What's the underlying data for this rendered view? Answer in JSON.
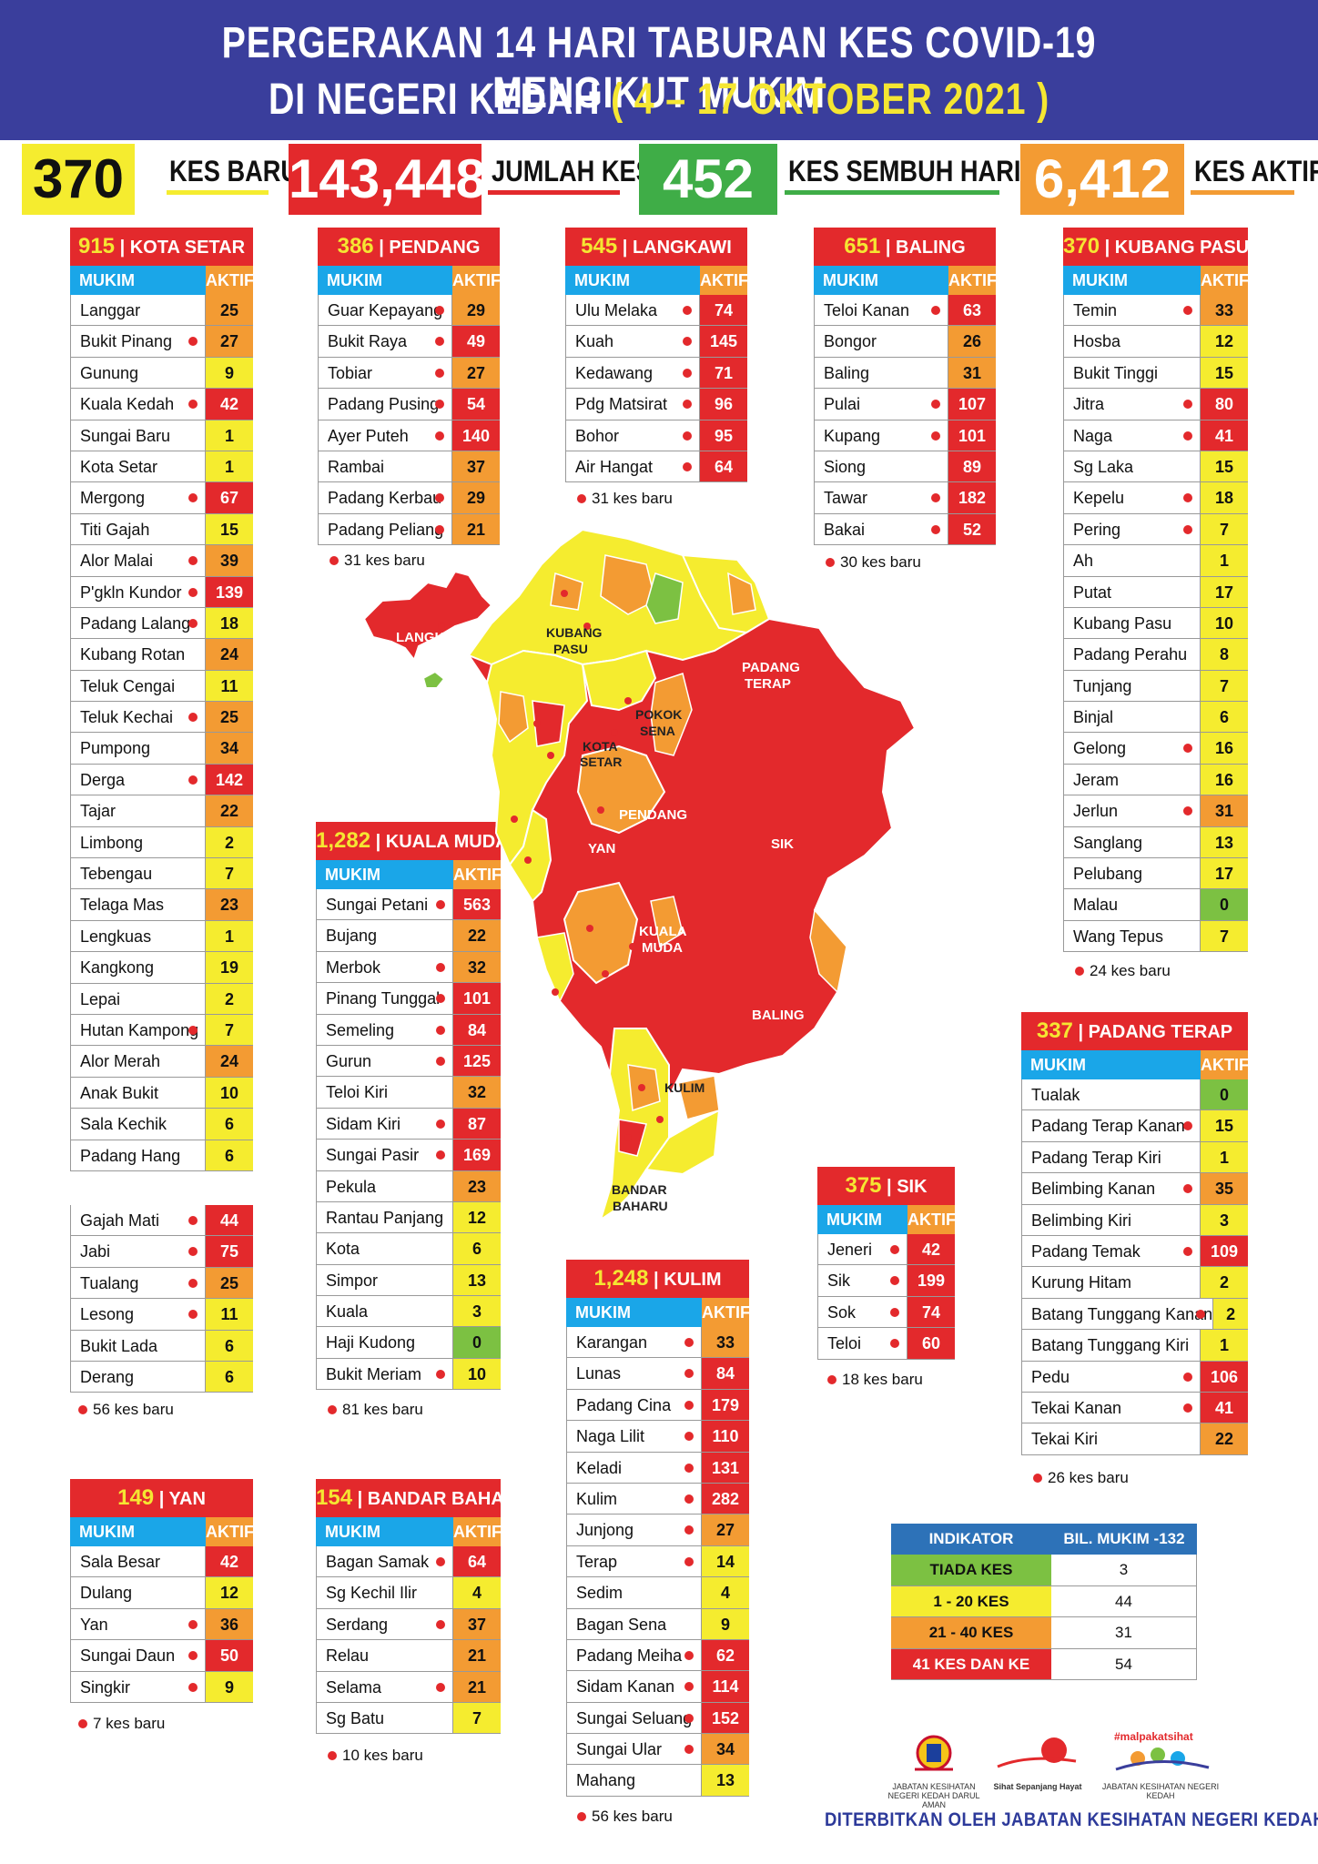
{
  "header": {
    "line1": "PERGERAKAN 14 HARI TABURAN KES COVID-19 MENGIKUT MUKIM",
    "line2_prefix": "DI NEGERI KEDAH",
    "line2_dates": "( 4 – 17 OKTOBER 2021 )"
  },
  "stats": {
    "new_cases": {
      "value": "370",
      "label": "KES BARU",
      "color": "#f5ec2f"
    },
    "total_cases": {
      "value": "143,448",
      "label": "JUMLAH KES",
      "color": "#e3292c"
    },
    "recovered": {
      "value": "452",
      "label": "KES SEMBUH HARIAN",
      "color": "#3fad47"
    },
    "active": {
      "value": "6,412",
      "label": "KES AKTIF",
      "color": "#f39b33"
    }
  },
  "colors": {
    "red": "#e3292c",
    "orange": "#f39b33",
    "yellow": "#f5ec2f",
    "green": "#7cc142",
    "blue": "#1aa6e8",
    "navy": "#3a3e9c"
  },
  "column_labels": {
    "mukim": "MUKIM",
    "aktif": "AKTIF"
  },
  "districts": {
    "kota_setar": {
      "total": "915",
      "name": "KOTA SETAR",
      "note": "56 kes baru",
      "rows": [
        {
          "name": "Langgar",
          "value": "25",
          "dot": false
        },
        {
          "name": "Bukit Pinang",
          "value": "27",
          "dot": true
        },
        {
          "name": "Gunung",
          "value": "9",
          "dot": false
        },
        {
          "name": "Kuala Kedah",
          "value": "42",
          "dot": true
        },
        {
          "name": "Sungai Baru",
          "value": "1",
          "dot": false
        },
        {
          "name": "Kota Setar",
          "value": "1",
          "dot": false
        },
        {
          "name": "Mergong",
          "value": "67",
          "dot": true
        },
        {
          "name": "Titi Gajah",
          "value": "15",
          "dot": false
        },
        {
          "name": "Alor Malai",
          "value": "39",
          "dot": true
        },
        {
          "name": "P'gkln Kundor",
          "value": "139",
          "dot": true
        },
        {
          "name": "Padang Lalang",
          "value": "18",
          "dot": true
        },
        {
          "name": "Kubang Rotan",
          "value": "24",
          "dot": false
        },
        {
          "name": "Teluk Cengai",
          "value": "11",
          "dot": false
        },
        {
          "name": "Teluk Kechai",
          "value": "25",
          "dot": true
        },
        {
          "name": "Pumpong",
          "value": "34",
          "dot": false
        },
        {
          "name": "Derga",
          "value": "142",
          "dot": true
        },
        {
          "name": "Tajar",
          "value": "22",
          "dot": false
        },
        {
          "name": "Limbong",
          "value": "2",
          "dot": false
        },
        {
          "name": "Tebengau",
          "value": "7",
          "dot": false
        },
        {
          "name": "Telaga Mas",
          "value": "23",
          "dot": false
        },
        {
          "name": "Lengkuas",
          "value": "1",
          "dot": false
        },
        {
          "name": "Kangkong",
          "value": "19",
          "dot": false
        },
        {
          "name": "Lepai",
          "value": "2",
          "dot": false
        },
        {
          "name": "Hutan Kampong",
          "value": "7",
          "dot": true
        },
        {
          "name": "Alor Merah",
          "value": "24",
          "dot": false
        },
        {
          "name": "Anak Bukit",
          "value": "10",
          "dot": false
        },
        {
          "name": "Sala Kechik",
          "value": "6",
          "dot": false
        },
        {
          "name": "Padang Hang",
          "value": "6",
          "dot": false
        }
      ],
      "rows2": [
        {
          "name": "Gajah Mati",
          "value": "44",
          "dot": true
        },
        {
          "name": "Jabi",
          "value": "75",
          "dot": true
        },
        {
          "name": "Tualang",
          "value": "25",
          "dot": true
        },
        {
          "name": "Lesong",
          "value": "11",
          "dot": true
        },
        {
          "name": "Bukit Lada",
          "value": "6",
          "dot": false
        },
        {
          "name": "Derang",
          "value": "6",
          "dot": false
        }
      ]
    },
    "yan": {
      "total": "149",
      "name": "YAN",
      "note": "7 kes baru",
      "rows": [
        {
          "name": "Sala Besar",
          "value": "42",
          "dot": false
        },
        {
          "name": "Dulang",
          "value": "12",
          "dot": false
        },
        {
          "name": "Yan",
          "value": "36",
          "dot": true
        },
        {
          "name": "Sungai Daun",
          "value": "50",
          "dot": true
        },
        {
          "name": "Singkir",
          "value": "9",
          "dot": true
        }
      ]
    },
    "pendang": {
      "total": "386",
      "name": "PENDANG",
      "note": "31 kes baru",
      "rows": [
        {
          "name": "Guar Kepayang",
          "value": "29",
          "dot": true
        },
        {
          "name": "Bukit Raya",
          "value": "49",
          "dot": true
        },
        {
          "name": "Tobiar",
          "value": "27",
          "dot": true
        },
        {
          "name": "Padang Pusing",
          "value": "54",
          "dot": true
        },
        {
          "name": "Ayer Puteh",
          "value": "140",
          "dot": true
        },
        {
          "name": "Rambai",
          "value": "37",
          "dot": false
        },
        {
          "name": "Padang Kerbau",
          "value": "29",
          "dot": true
        },
        {
          "name": "Padang Peliang",
          "value": "21",
          "dot": true
        }
      ]
    },
    "kuala_muda": {
      "total": "1,282",
      "name": "KUALA MUDA",
      "note": "81 kes baru",
      "rows": [
        {
          "name": "Sungai Petani",
          "value": "563",
          "dot": true
        },
        {
          "name": "Bujang",
          "value": "22",
          "dot": false
        },
        {
          "name": "Merbok",
          "value": "32",
          "dot": true
        },
        {
          "name": "Pinang Tunggal",
          "value": "101",
          "dot": true
        },
        {
          "name": "Semeling",
          "value": "84",
          "dot": true
        },
        {
          "name": "Gurun",
          "value": "125",
          "dot": true
        },
        {
          "name": "Teloi Kiri",
          "value": "32",
          "dot": false
        },
        {
          "name": "Sidam Kiri",
          "value": "87",
          "dot": true
        },
        {
          "name": "Sungai Pasir",
          "value": "169",
          "dot": true
        },
        {
          "name": "Pekula",
          "value": "23",
          "dot": false
        },
        {
          "name": "Rantau Panjang",
          "value": "12",
          "dot": false
        },
        {
          "name": "Kota",
          "value": "6",
          "dot": false
        },
        {
          "name": "Simpor",
          "value": "13",
          "dot": false
        },
        {
          "name": "Kuala",
          "value": "3",
          "dot": false
        },
        {
          "name": "Haji Kudong",
          "value": "0",
          "dot": false
        },
        {
          "name": "Bukit Meriam",
          "value": "10",
          "dot": true
        }
      ]
    },
    "bandar_baharu": {
      "total": "154",
      "name": "BANDAR BAHARU",
      "note": "10 kes baru",
      "rows": [
        {
          "name": "Bagan Samak",
          "value": "64",
          "dot": true
        },
        {
          "name": "Sg Kechil Ilir",
          "value": "4",
          "dot": false
        },
        {
          "name": "Serdang",
          "value": "37",
          "dot": true
        },
        {
          "name": "Relau",
          "value": "21",
          "dot": false
        },
        {
          "name": "Selama",
          "value": "21",
          "dot": true
        },
        {
          "name": "Sg Batu",
          "value": "7",
          "dot": false
        }
      ]
    },
    "langkawi": {
      "total": "545",
      "name": "LANGKAWI",
      "note": "31 kes baru",
      "rows": [
        {
          "name": "Ulu Melaka",
          "value": "74",
          "dot": true
        },
        {
          "name": "Kuah",
          "value": "145",
          "dot": true
        },
        {
          "name": "Kedawang",
          "value": "71",
          "dot": true
        },
        {
          "name": "Pdg Matsirat",
          "value": "96",
          "dot": true
        },
        {
          "name": "Bohor",
          "value": "95",
          "dot": true
        },
        {
          "name": "Air Hangat",
          "value": "64",
          "dot": true
        }
      ]
    },
    "kulim": {
      "total": "1,248",
      "name": "KULIM",
      "note": "56 kes baru",
      "rows": [
        {
          "name": "Karangan",
          "value": "33",
          "dot": true
        },
        {
          "name": "Lunas",
          "value": "84",
          "dot": true
        },
        {
          "name": "Padang Cina",
          "value": "179",
          "dot": true
        },
        {
          "name": "Naga Lilit",
          "value": "110",
          "dot": true
        },
        {
          "name": "Keladi",
          "value": "131",
          "dot": true
        },
        {
          "name": "Kulim",
          "value": "282",
          "dot": true
        },
        {
          "name": "Junjong",
          "value": "27",
          "dot": true
        },
        {
          "name": "Terap",
          "value": "14",
          "dot": true
        },
        {
          "name": "Sedim",
          "value": "4",
          "dot": false
        },
        {
          "name": "Bagan Sena",
          "value": "9",
          "dot": false
        },
        {
          "name": "Padang Meiha",
          "value": "62",
          "dot": true
        },
        {
          "name": "Sidam Kanan",
          "value": "114",
          "dot": true
        },
        {
          "name": "Sungai Seluang",
          "value": "152",
          "dot": true
        },
        {
          "name": "Sungai Ular",
          "value": "34",
          "dot": true
        },
        {
          "name": "Mahang",
          "value": "13",
          "dot": false
        }
      ]
    },
    "baling": {
      "total": "651",
      "name": "BALING",
      "note": "30 kes baru",
      "rows": [
        {
          "name": "Teloi Kanan",
          "value": "63",
          "dot": true
        },
        {
          "name": "Bongor",
          "value": "26",
          "dot": false
        },
        {
          "name": "Baling",
          "value": "31",
          "dot": false
        },
        {
          "name": "Pulai",
          "value": "107",
          "dot": true
        },
        {
          "name": "Kupang",
          "value": "101",
          "dot": true
        },
        {
          "name": "Siong",
          "value": "89",
          "dot": false
        },
        {
          "name": "Tawar",
          "value": "182",
          "dot": true
        },
        {
          "name": "Bakai",
          "value": "52",
          "dot": true
        }
      ]
    },
    "sik": {
      "total": "375",
      "name": "SIK",
      "note": "18 kes baru",
      "rows": [
        {
          "name": "Jeneri",
          "value": "42",
          "dot": true
        },
        {
          "name": "Sik",
          "value": "199",
          "dot": true
        },
        {
          "name": "Sok",
          "value": "74",
          "dot": true
        },
        {
          "name": "Teloi",
          "value": "60",
          "dot": true
        }
      ]
    },
    "kubang_pasu": {
      "total": "370",
      "name": "KUBANG PASU",
      "note": "24 kes baru",
      "rows": [
        {
          "name": "Temin",
          "value": "33",
          "dot": true
        },
        {
          "name": "Hosba",
          "value": "12",
          "dot": false
        },
        {
          "name": "Bukit Tinggi",
          "value": "15",
          "dot": false
        },
        {
          "name": "Jitra",
          "value": "80",
          "dot": true
        },
        {
          "name": "Naga",
          "value": "41",
          "dot": true
        },
        {
          "name": "Sg Laka",
          "value": "15",
          "dot": false
        },
        {
          "name": "Kepelu",
          "value": "18",
          "dot": true
        },
        {
          "name": "Pering",
          "value": "7",
          "dot": true
        },
        {
          "name": "Ah",
          "value": "1",
          "dot": false
        },
        {
          "name": "Putat",
          "value": "17",
          "dot": false
        },
        {
          "name": "Kubang Pasu",
          "value": "10",
          "dot": false
        },
        {
          "name": "Padang Perahu",
          "value": "8",
          "dot": false
        },
        {
          "name": "Tunjang",
          "value": "7",
          "dot": false
        },
        {
          "name": "Binjal",
          "value": "6",
          "dot": false
        },
        {
          "name": "Gelong",
          "value": "16",
          "dot": true
        },
        {
          "name": "Jeram",
          "value": "16",
          "dot": false
        },
        {
          "name": "Jerlun",
          "value": "31",
          "dot": true
        },
        {
          "name": "Sanglang",
          "value": "13",
          "dot": false
        },
        {
          "name": "Pelubang",
          "value": "17",
          "dot": false
        },
        {
          "name": "Malau",
          "value": "0",
          "dot": false
        },
        {
          "name": "Wang Tepus",
          "value": "7",
          "dot": false
        }
      ]
    },
    "padang_terap": {
      "total": "337",
      "name": "PADANG TERAP",
      "note": "26 kes baru",
      "rows": [
        {
          "name": "Tualak",
          "value": "0",
          "dot": false
        },
        {
          "name": "Padang Terap Kanan",
          "value": "15",
          "dot": true
        },
        {
          "name": "Padang Terap Kiri",
          "value": "1",
          "dot": false
        },
        {
          "name": "Belimbing Kanan",
          "value": "35",
          "dot": true
        },
        {
          "name": "Belimbing Kiri",
          "value": "3",
          "dot": false
        },
        {
          "name": "Padang Temak",
          "value": "109",
          "dot": true
        },
        {
          "name": "Kurung Hitam",
          "value": "2",
          "dot": false
        },
        {
          "name": "Batang Tunggang Kanan",
          "value": "2",
          "dot": true
        },
        {
          "name": "Batang Tunggang Kiri",
          "value": "1",
          "dot": false
        },
        {
          "name": "Pedu",
          "value": "106",
          "dot": true
        },
        {
          "name": "Tekai Kanan",
          "value": "41",
          "dot": true
        },
        {
          "name": "Tekai Kiri",
          "value": "22",
          "dot": false
        }
      ]
    }
  },
  "map_labels": {
    "langkawi": "LANGKAWI",
    "kubang_pasu_1": "KUBANG",
    "kubang_pasu_2": "PASU",
    "padang_terap_1": "PADANG",
    "padang_terap_2": "TERAP",
    "pokok_sena_1": "POKOK",
    "pokok_sena_2": "SENA",
    "kota_setar_1": "KOTA",
    "kota_setar_2": "SETAR",
    "pendang": "PENDANG",
    "yan": "YAN",
    "sik": "SIK",
    "kuala_muda_1": "KUALA",
    "kuala_muda_2": "MUDA",
    "baling": "BALING",
    "kulim": "KULIM",
    "bandar_baharu_1": "BANDAR",
    "bandar_baharu_2": "BAHARU"
  },
  "legend": {
    "head_left": "INDIKATOR",
    "head_right": "BIL. MUKIM -132",
    "rows": [
      {
        "label": "TIADA KES",
        "count": "3",
        "color": "#7cc142"
      },
      {
        "label": "1 - 20 KES",
        "count": "44",
        "color": "#f5ec2f"
      },
      {
        "label": "21 - 40 KES",
        "count": "31",
        "color": "#f39b33"
      },
      {
        "label": "41 KES DAN KE ATAS",
        "count": "54",
        "color": "#e3292c"
      }
    ]
  },
  "logos": {
    "jkn_caption": "JABATAN KESIHATAN NEGERI KEDAH DARUL AMAN",
    "kempen_caption": "Sihat Sepanjang Hayat",
    "malpakat_caption": "JABATAN KESIHATAN NEGERI KEDAH",
    "malpakat_tag": "#malpakatsihat"
  },
  "footer": "DITERBITKAN OLEH JABATAN KESIHATAN NEGERI KEDAH"
}
